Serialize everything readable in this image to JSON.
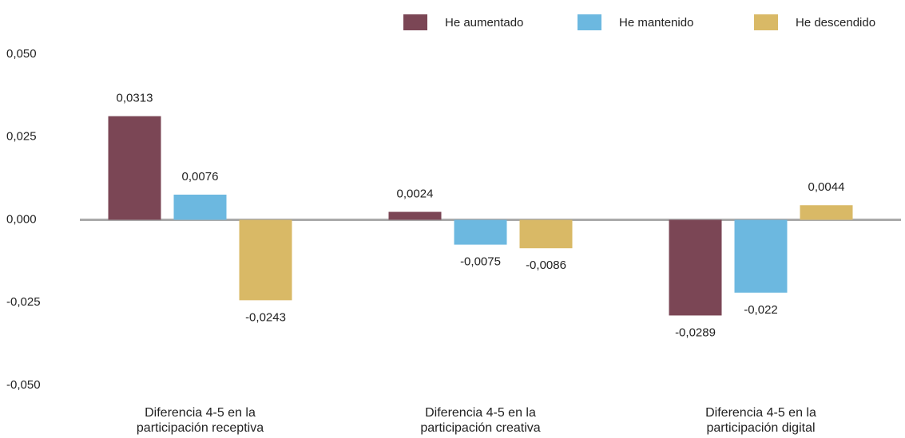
{
  "chart_data": {
    "type": "bar",
    "categories": [
      "Diferencia 4-5 en la participación receptiva",
      "Diferencia 4-5 en la participación creativa",
      "Diferencia 4-5 en la participación digital"
    ],
    "series": [
      {
        "name": "He aumentado",
        "color": "#7b4655",
        "values": [
          0.0313,
          0.0024,
          -0.0289
        ],
        "value_labels": [
          "0,0313",
          "0,0024",
          "-0,0289"
        ]
      },
      {
        "name": "He mantenido",
        "color": "#6cb8e0",
        "values": [
          0.0076,
          -0.0075,
          -0.022
        ],
        "value_labels": [
          "0,0076",
          "-0,0075",
          "-0,022"
        ]
      },
      {
        "name": "He descendido",
        "color": "#d9b966",
        "values": [
          -0.0243,
          -0.0086,
          0.0044
        ],
        "value_labels": [
          "-0,0243",
          "-0,0086",
          "0,0044"
        ]
      }
    ],
    "ylim": [
      -0.05,
      0.05
    ],
    "yticks": [
      {
        "value": -0.05,
        "label": "-0,050"
      },
      {
        "value": -0.025,
        "label": "-0,025"
      },
      {
        "value": 0,
        "label": "0,000"
      },
      {
        "value": 0.025,
        "label": "0,025"
      },
      {
        "value": 0.05,
        "label": "0,050"
      }
    ],
    "legend": "top-right"
  }
}
